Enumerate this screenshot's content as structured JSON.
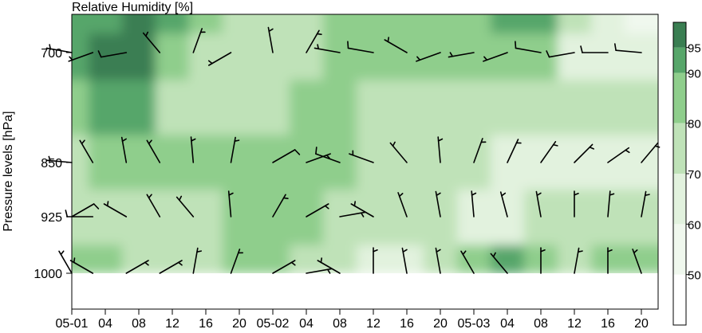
{
  "chart_data": {
    "type": "heatmap",
    "title": "Relative Humidity [%]",
    "xlabel": "",
    "ylabel": "Pressure levels [hPa]",
    "x_tick_labels": [
      "05-01",
      "04",
      "08",
      "12",
      "16",
      "20",
      "05-02",
      "04",
      "08",
      "12",
      "16",
      "20",
      "05-03",
      "04",
      "08",
      "12",
      "16",
      "20"
    ],
    "x_hours": [
      0,
      4,
      8,
      12,
      16,
      20,
      24,
      28,
      32,
      36,
      40,
      44,
      48,
      52,
      56,
      60,
      64,
      68
    ],
    "xlim_hours": [
      0,
      70
    ],
    "y_tick_labels": [
      "700",
      "850",
      "925",
      "1000"
    ],
    "levels_hpa": [
      700,
      850,
      925,
      1000
    ],
    "ylim_hpa": [
      1000,
      660
    ],
    "colorbar": {
      "tick_labels": [
        "50",
        "60",
        "70",
        "80",
        "90",
        "95"
      ],
      "bins": [
        40,
        50,
        60,
        70,
        80,
        90,
        95,
        100
      ],
      "colors": [
        "#ffffff",
        "#f0f8ee",
        "#e2f2de",
        "#bfe2b8",
        "#8fce8c",
        "#57a66a",
        "#3a7e52"
      ]
    },
    "grid": false,
    "profile_hours": [
      0,
      4,
      8,
      12,
      16,
      20,
      24,
      28,
      32,
      36,
      40,
      44,
      48,
      52,
      56,
      60,
      64,
      68
    ],
    "rh_rows": [
      {
        "level": 665,
        "rh": [
          91,
          94,
          96,
          92,
          80,
          75,
          72,
          74,
          80,
          84,
          88,
          86,
          88,
          92,
          94,
          70,
          60,
          58
        ]
      },
      {
        "level": 700,
        "rh": [
          90,
          96,
          96,
          88,
          78,
          74,
          76,
          78,
          80,
          82,
          80,
          80,
          82,
          86,
          82,
          68,
          62,
          64
        ]
      },
      {
        "level": 775,
        "rh": [
          86,
          92,
          92,
          74,
          72,
          76,
          78,
          80,
          80,
          78,
          78,
          74,
          76,
          78,
          78,
          74,
          72,
          72
        ]
      },
      {
        "level": 850,
        "rh": [
          74,
          80,
          82,
          80,
          86,
          82,
          80,
          80,
          80,
          78,
          76,
          74,
          72,
          66,
          64,
          66,
          64,
          66
        ]
      },
      {
        "level": 925,
        "rh": [
          72,
          78,
          76,
          74,
          78,
          80,
          82,
          82,
          78,
          76,
          72,
          70,
          66,
          62,
          70,
          72,
          74,
          72
        ]
      },
      {
        "level": 1000,
        "rh": [
          86,
          80,
          76,
          70,
          74,
          80,
          82,
          76,
          72,
          68,
          66,
          76,
          82,
          90,
          84,
          78,
          80,
          88
        ]
      }
    ],
    "wind_barbs": [
      {
        "level": 700,
        "hour": [
          0,
          2.5,
          6.5,
          10.5,
          14.5,
          19,
          24,
          28,
          32,
          36,
          40,
          44,
          48,
          52,
          56,
          60,
          64,
          68
        ],
        "speed_kt": [
          5,
          5,
          10,
          5,
          5,
          5,
          5,
          5,
          5,
          10,
          5,
          5,
          5,
          5,
          10,
          10,
          10,
          10
        ],
        "dir_deg": [
          280,
          250,
          260,
          320,
          20,
          240,
          350,
          30,
          280,
          280,
          300,
          250,
          260,
          250,
          280,
          260,
          270,
          275
        ]
      },
      {
        "level": 850,
        "hour": [
          0,
          2.5,
          6.5,
          10.5,
          14.5,
          19,
          24,
          28,
          32,
          36,
          40,
          44,
          48,
          52,
          56,
          60,
          64,
          68
        ],
        "speed_kt": [
          5,
          5,
          5,
          5,
          5,
          5,
          10,
          5,
          10,
          5,
          5,
          5,
          5,
          5,
          5,
          5,
          5,
          5
        ],
        "dir_deg": [
          275,
          330,
          350,
          330,
          355,
          10,
          60,
          70,
          290,
          290,
          320,
          355,
          20,
          25,
          35,
          45,
          55,
          40
        ]
      },
      {
        "level": 925,
        "hour": [
          0,
          2.5,
          6.5,
          10.5,
          14.5,
          19,
          24,
          28,
          32,
          36,
          40,
          44,
          48,
          52,
          56,
          60,
          64,
          68
        ],
        "speed_kt": [
          10,
          10,
          5,
          5,
          5,
          5,
          5,
          5,
          5,
          5,
          5,
          5,
          5,
          5,
          5,
          5,
          5,
          5
        ],
        "dir_deg": [
          60,
          270,
          300,
          330,
          320,
          355,
          30,
          60,
          80,
          300,
          340,
          350,
          355,
          345,
          350,
          0,
          5,
          10
        ]
      },
      {
        "level": 1000,
        "hour": [
          0,
          2.5,
          6.5,
          10.5,
          14.5,
          19,
          24,
          28,
          32,
          36,
          40,
          44,
          48,
          52,
          56,
          60,
          64,
          68
        ],
        "speed_kt": [
          5,
          5,
          5,
          5,
          5,
          5,
          5,
          5,
          5,
          5,
          5,
          5,
          5,
          5,
          5,
          5,
          5,
          5
        ],
        "dir_deg": [
          330,
          300,
          60,
          60,
          10,
          20,
          60,
          80,
          300,
          0,
          350,
          350,
          330,
          320,
          0,
          10,
          0,
          340
        ]
      }
    ]
  }
}
